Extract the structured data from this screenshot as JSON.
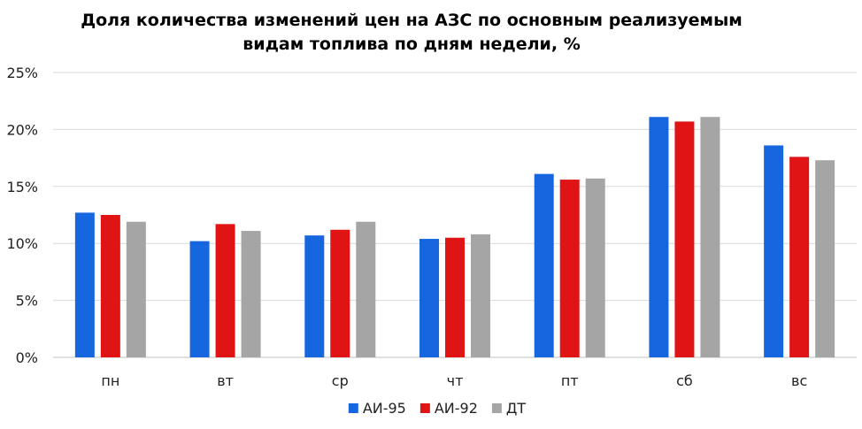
{
  "chart_data": {
    "type": "bar",
    "title_lines": [
      "Доля количества изменений цен на АЗС по основным реализуемым",
      "видам топлива по дням недели, %"
    ],
    "xlabel": "",
    "ylabel": "",
    "categories": [
      "пн",
      "вт",
      "ср",
      "чт",
      "пт",
      "сб",
      "вс"
    ],
    "series": [
      {
        "name": "АИ-95",
        "color": "#1666e0",
        "values": [
          12.7,
          10.2,
          10.7,
          10.4,
          16.1,
          21.1,
          18.6
        ]
      },
      {
        "name": "АИ-92",
        "color": "#e01414",
        "values": [
          12.5,
          11.7,
          11.2,
          10.5,
          15.6,
          20.7,
          17.6
        ]
      },
      {
        "name": "ДТ",
        "color": "#a5a5a5",
        "values": [
          11.9,
          11.1,
          11.9,
          10.8,
          15.7,
          21.1,
          17.3
        ]
      }
    ],
    "ylim": [
      0,
      25
    ],
    "yticks": [
      "0%",
      "5%",
      "10%",
      "15%",
      "20%",
      "25%"
    ],
    "grid": true,
    "legend_position": "bottom"
  }
}
